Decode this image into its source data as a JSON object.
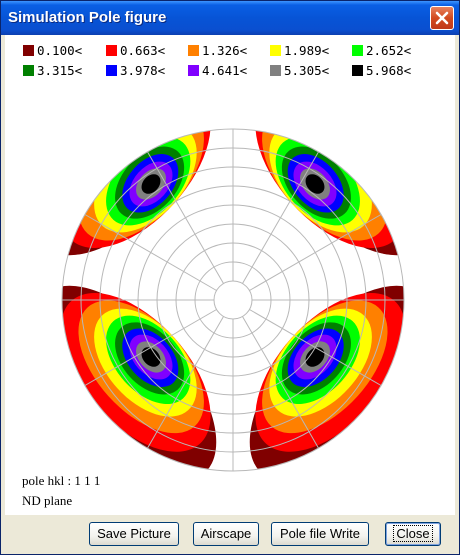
{
  "window": {
    "title": "Simulation Pole figure"
  },
  "legend": [
    {
      "label": "0.100<",
      "color": "#800000"
    },
    {
      "label": "0.663<",
      "color": "#ff0000"
    },
    {
      "label": "1.326<",
      "color": "#ff8000"
    },
    {
      "label": "1.989<",
      "color": "#ffff00"
    },
    {
      "label": "2.652<",
      "color": "#00ff00"
    },
    {
      "label": "3.315<",
      "color": "#008000"
    },
    {
      "label": "3.978<",
      "color": "#0000ff"
    },
    {
      "label": "4.641<",
      "color": "#8000ff"
    },
    {
      "label": "5.305<",
      "color": "#808080"
    },
    {
      "label": "5.968<",
      "color": "#000000"
    }
  ],
  "info": {
    "pole": "pole hkl : 1 1 1",
    "plane": "ND plane"
  },
  "buttons": {
    "save_picture": "Save Picture",
    "airscape": "Airscape",
    "pole_file_write": "Pole file Write",
    "close": "Close"
  }
}
